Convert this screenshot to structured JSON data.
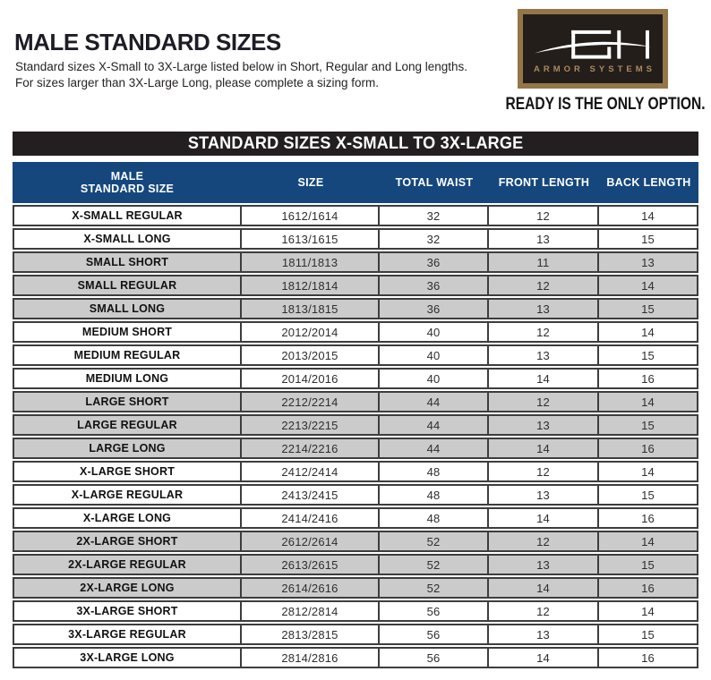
{
  "header": {
    "title": "MALE STANDARD SIZES",
    "subtitle_line1": "Standard sizes X-Small to 3X-Large listed below in Short, Regular and Long lengths.",
    "subtitle_line2": "For sizes larger than 3X-Large Long, please complete a sizing form."
  },
  "logo": {
    "monogram": "GH",
    "brand": "ARMOR SYSTEMS",
    "tagline": "READY IS THE ONLY OPTION.",
    "border_color": "#957649",
    "background_color": "#241e1b",
    "brand_text_color": "#aa8a5c"
  },
  "table": {
    "band_title": "STANDARD SIZES X-SMALL TO 3X-LARGE",
    "header": {
      "col1_line1": "MALE",
      "col1_line2": "STANDARD SIZE",
      "col2": "SIZE",
      "col3": "TOTAL WAIST",
      "col4": "FRONT LENGTH",
      "col5": "BACK LENGTH"
    },
    "colors": {
      "band_bg": "#231f20",
      "header_bg": "#15477d",
      "shaded_row_bg": "#cbcbcb",
      "row_border": "#3d3d3d"
    },
    "rows": [
      {
        "cells": [
          "X-SMALL REGULAR",
          "1612/1614",
          "32",
          "12",
          "14"
        ],
        "shaded": false
      },
      {
        "cells": [
          "X-SMALL LONG",
          "1613/1615",
          "32",
          "13",
          "15"
        ],
        "shaded": false
      },
      {
        "cells": [
          "SMALL SHORT",
          "1811/1813",
          "36",
          "11",
          "13"
        ],
        "shaded": true
      },
      {
        "cells": [
          "SMALL REGULAR",
          "1812/1814",
          "36",
          "12",
          "14"
        ],
        "shaded": true
      },
      {
        "cells": [
          "SMALL LONG",
          "1813/1815",
          "36",
          "13",
          "15"
        ],
        "shaded": true
      },
      {
        "cells": [
          "MEDIUM SHORT",
          "2012/2014",
          "40",
          "12",
          "14"
        ],
        "shaded": false
      },
      {
        "cells": [
          "MEDIUM REGULAR",
          "2013/2015",
          "40",
          "13",
          "15"
        ],
        "shaded": false
      },
      {
        "cells": [
          "MEDIUM LONG",
          "2014/2016",
          "40",
          "14",
          "16"
        ],
        "shaded": false
      },
      {
        "cells": [
          "LARGE SHORT",
          "2212/2214",
          "44",
          "12",
          "14"
        ],
        "shaded": true
      },
      {
        "cells": [
          "LARGE REGULAR",
          "2213/2215",
          "44",
          "13",
          "15"
        ],
        "shaded": true
      },
      {
        "cells": [
          "LARGE LONG",
          "2214/2216",
          "44",
          "14",
          "16"
        ],
        "shaded": true
      },
      {
        "cells": [
          "X-LARGE SHORT",
          "2412/2414",
          "48",
          "12",
          "14"
        ],
        "shaded": false
      },
      {
        "cells": [
          "X-LARGE REGULAR",
          "2413/2415",
          "48",
          "13",
          "15"
        ],
        "shaded": false
      },
      {
        "cells": [
          "X-LARGE LONG",
          "2414/2416",
          "48",
          "14",
          "16"
        ],
        "shaded": false
      },
      {
        "cells": [
          "2X-LARGE SHORT",
          "2612/2614",
          "52",
          "12",
          "14"
        ],
        "shaded": true
      },
      {
        "cells": [
          "2X-LARGE REGULAR",
          "2613/2615",
          "52",
          "13",
          "15"
        ],
        "shaded": true
      },
      {
        "cells": [
          "2X-LARGE LONG",
          "2614/2616",
          "52",
          "14",
          "16"
        ],
        "shaded": true
      },
      {
        "cells": [
          "3X-LARGE SHORT",
          "2812/2814",
          "56",
          "12",
          "14"
        ],
        "shaded": false
      },
      {
        "cells": [
          "3X-LARGE REGULAR",
          "2813/2815",
          "56",
          "13",
          "15"
        ],
        "shaded": false
      },
      {
        "cells": [
          "3X-LARGE LONG",
          "2814/2816",
          "56",
          "14",
          "16"
        ],
        "shaded": false
      }
    ]
  }
}
